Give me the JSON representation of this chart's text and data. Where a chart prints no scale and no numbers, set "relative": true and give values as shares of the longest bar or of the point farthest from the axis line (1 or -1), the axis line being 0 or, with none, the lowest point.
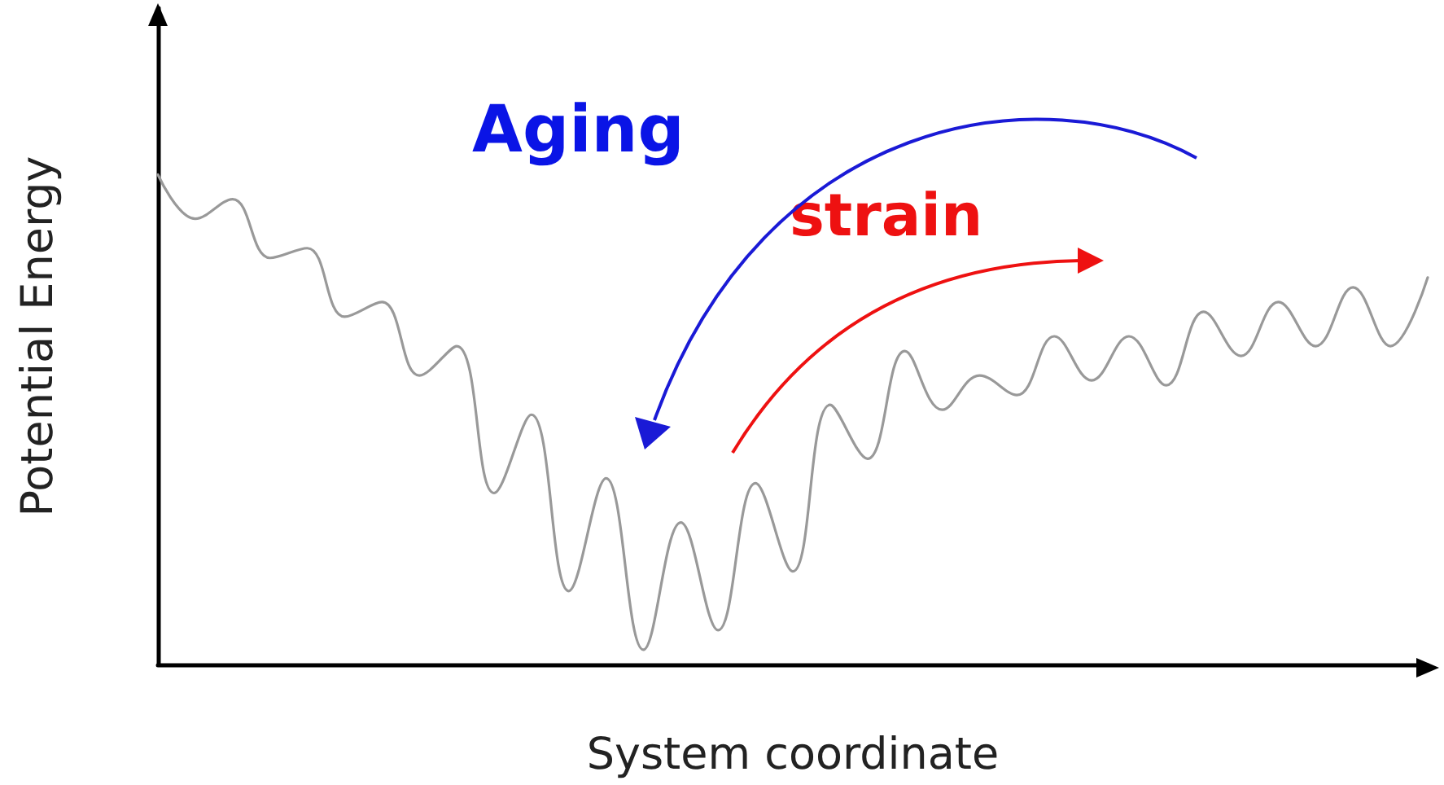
{
  "chart_data": {
    "type": "line",
    "relative": true,
    "xlabel": "System coordinate",
    "ylabel": "Potential Energy",
    "annotations": [
      "Aging",
      "strain"
    ],
    "categories": [
      null,
      null,
      null,
      null,
      null,
      null,
      null,
      null,
      null,
      null,
      null,
      null,
      null,
      null,
      null,
      null,
      null,
      null,
      null,
      null,
      null,
      null,
      null,
      null,
      null,
      null,
      null,
      null,
      null,
      null,
      null,
      null,
      null,
      null,
      null
    ],
    "series": [
      {
        "color": "#999999",
        "values": [
          1.0,
          0.91,
          0.95,
          0.83,
          0.85,
          0.71,
          0.74,
          0.59,
          0.65,
          0.35,
          0.51,
          0.15,
          0.38,
          0.03,
          0.29,
          0.07,
          0.37,
          0.19,
          0.53,
          0.42,
          0.64,
          0.52,
          0.59,
          0.55,
          0.67,
          0.58,
          0.67,
          0.57,
          0.72,
          0.63,
          0.74,
          0.65,
          0.77,
          0.65,
          0.79
        ]
      }
    ],
    "grid": false,
    "marker": "none",
    "line_style": "solid"
  }
}
